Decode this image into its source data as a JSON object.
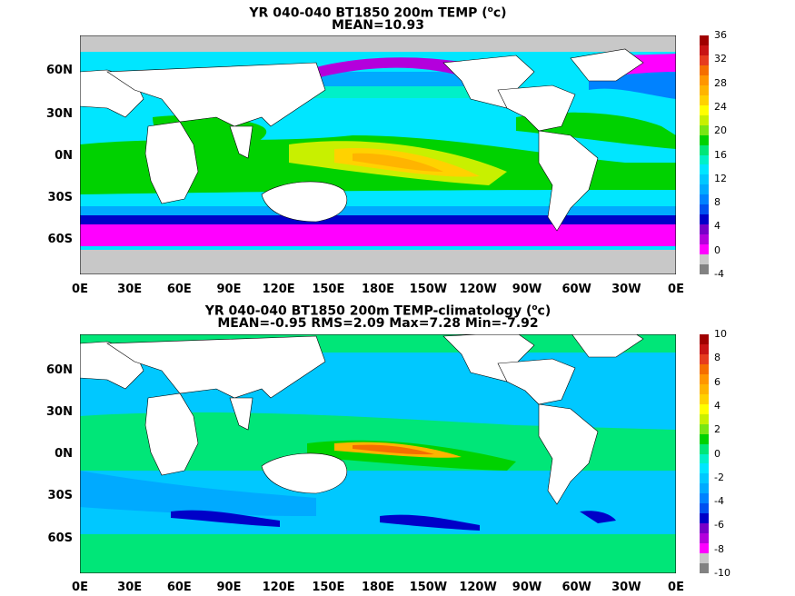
{
  "panels": [
    {
      "title_prefix": "YR 040-040 BT1850 200m TEMP (",
      "title_unit_o": "o",
      "title_suffix": "c)",
      "stats": "MEAN=10.93",
      "lat_labels": [
        "60N",
        "30N",
        "0N",
        "30S",
        "60S"
      ],
      "lon_labels": [
        "0E",
        "30E",
        "60E",
        "90E",
        "120E",
        "150E",
        "180E",
        "150W",
        "120W",
        "90W",
        "60W",
        "30W",
        "0E"
      ],
      "colorbar": {
        "labels": [
          "36",
          "32",
          "28",
          "24",
          "20",
          "16",
          "12",
          "8",
          "4",
          "0",
          "-4"
        ],
        "colors": [
          "#a00000",
          "#c81414",
          "#e63c1e",
          "#f56e00",
          "#ff9600",
          "#ffb400",
          "#ffd200",
          "#ffff00",
          "#c8f000",
          "#78e614",
          "#00d200",
          "#00e678",
          "#00f0c8",
          "#00e6ff",
          "#00c8ff",
          "#00aaff",
          "#0082ff",
          "#0050f0",
          "#0000c8",
          "#7800c8",
          "#b400dc",
          "#ff00ff",
          "#c8c8c8",
          "#828282"
        ]
      }
    },
    {
      "title_prefix": "YR 040-040 BT1850 200m TEMP-climatology (",
      "title_unit_o": "o",
      "title_suffix": "c)",
      "stats": "MEAN=-0.95   RMS=2.09   Max=7.28   Min=-7.92",
      "lat_labels": [
        "60N",
        "30N",
        "0N",
        "30S",
        "60S"
      ],
      "lon_labels": [
        "0E",
        "30E",
        "60E",
        "90E",
        "120E",
        "150E",
        "180E",
        "150W",
        "120W",
        "90W",
        "60W",
        "30W",
        "0E"
      ],
      "colorbar": {
        "labels": [
          "10",
          "8",
          "6",
          "4",
          "2",
          "0",
          "-2",
          "-4",
          "-6",
          "-8",
          "-10"
        ],
        "colors": [
          "#a00000",
          "#c81414",
          "#e63c1e",
          "#f56e00",
          "#ff9600",
          "#ffb400",
          "#ffd200",
          "#ffff00",
          "#c8f000",
          "#78e614",
          "#00d200",
          "#00e678",
          "#00f0c8",
          "#00e6ff",
          "#00c8ff",
          "#00aaff",
          "#0082ff",
          "#0050f0",
          "#0000c8",
          "#7800c8",
          "#b400dc",
          "#ff00ff",
          "#c8c8c8",
          "#828282"
        ]
      }
    }
  ]
}
